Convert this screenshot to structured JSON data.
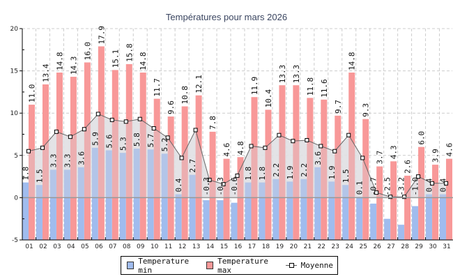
{
  "chart_data": {
    "type": "bar",
    "title": "Températures pour mars 2026",
    "xlabel": "",
    "ylabel": "",
    "ylim": [
      -5,
      20
    ],
    "yticks": [
      -5,
      0,
      5,
      10,
      15,
      20
    ],
    "grid": true,
    "legend_position": "bottom",
    "categories": [
      "01",
      "02",
      "03",
      "04",
      "05",
      "06",
      "07",
      "08",
      "09",
      "10",
      "11",
      "12",
      "13",
      "14",
      "15",
      "16",
      "17",
      "18",
      "19",
      "20",
      "21",
      "22",
      "23",
      "24",
      "25",
      "26",
      "27",
      "28",
      "29",
      "30",
      "31"
    ],
    "series": [
      {
        "name": "Temperature min",
        "kind": "bar",
        "color": "#a0bcee",
        "values": [
          1.8,
          1.5,
          3.3,
          3.3,
          3.6,
          5.9,
          5.6,
          5.3,
          5.8,
          5.7,
          5.2,
          0.4,
          2.7,
          -0.3,
          -0.3,
          -0.6,
          1.8,
          1.8,
          2.2,
          1.9,
          2.2,
          3.6,
          1.9,
          1.5,
          0.1,
          -0.7,
          -2.5,
          -3.2,
          -1.0,
          0.4,
          0.4
        ]
      },
      {
        "name": "Temperature max",
        "kind": "bar",
        "color": "#f89898",
        "values": [
          11.0,
          13.4,
          14.8,
          14.3,
          16.0,
          17.9,
          15.1,
          15.8,
          14.8,
          11.7,
          9.6,
          10.8,
          12.1,
          7.8,
          4.6,
          4.8,
          11.9,
          10.4,
          13.3,
          13.3,
          11.8,
          11.6,
          9.7,
          14.8,
          9.3,
          3.7,
          4.3,
          2.6,
          6.0,
          3.9,
          4.6
        ]
      },
      {
        "name": "Moyenne",
        "kind": "line",
        "color": "#555555",
        "values": [
          5.5,
          5.9,
          7.8,
          7.2,
          8.1,
          9.9,
          9.2,
          9.0,
          9.3,
          8.2,
          7.1,
          4.7,
          8.0,
          2.1,
          1.6,
          2.6,
          6.1,
          5.9,
          7.4,
          6.7,
          6.8,
          6.1,
          5.5,
          7.4,
          4.7,
          0.6,
          0.1,
          0.1,
          2.5,
          1.7,
          1.7
        ]
      }
    ]
  },
  "legend": {
    "min_label": "Temperature min",
    "max_label": "Temperature max",
    "avg_label": "Moyenne"
  }
}
